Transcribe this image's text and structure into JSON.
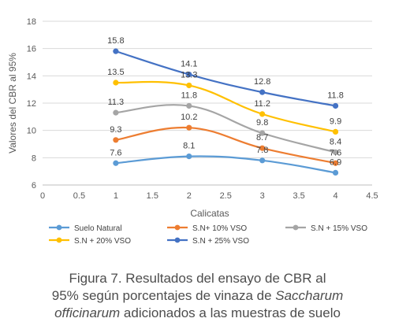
{
  "chart_data": {
    "type": "line",
    "xlabel": "Calicatas",
    "ylabel": "Valores del CBR al 95%",
    "xlim": [
      0,
      4.5
    ],
    "ylim": [
      6,
      18
    ],
    "xticks": [
      "0",
      "0.5",
      "1",
      "1.5",
      "2",
      "2.5",
      "3",
      "3.5",
      "4",
      "4.5"
    ],
    "yticks": [
      "6",
      "8",
      "10",
      "12",
      "14",
      "16",
      "18"
    ],
    "x": [
      1,
      2,
      3,
      4
    ],
    "grid": "horizontal",
    "legend_position": "bottom",
    "series": [
      {
        "name": "Suelo Natural",
        "color": "#5B9BD5",
        "values": [
          7.6,
          8.1,
          7.8,
          6.9
        ],
        "labels": [
          "7.6",
          "8.1",
          "7.8",
          "6.9"
        ]
      },
      {
        "name": "S.N+ 10% VSO",
        "color": "#ED7D31",
        "values": [
          9.3,
          10.2,
          8.7,
          7.6
        ],
        "labels": [
          "9.3",
          "10.2",
          "8.7",
          "7.6"
        ]
      },
      {
        "name": "S.N + 15% VSO",
        "color": "#A5A5A5",
        "values": [
          11.3,
          11.8,
          9.8,
          8.4
        ],
        "labels": [
          "11.3",
          "11.8",
          "9.8",
          "8.4"
        ]
      },
      {
        "name": "S.N + 20% VSO",
        "color": "#FFC000",
        "values": [
          13.5,
          13.3,
          11.2,
          9.9
        ],
        "labels": [
          "13.5",
          "13.3",
          "11.2",
          "9.9"
        ]
      },
      {
        "name": "S.N + 25% VSO",
        "color": "#4472C4",
        "values": [
          15.8,
          14.1,
          12.8,
          11.8
        ],
        "labels": [
          "15.8",
          "14.1",
          "12.8",
          "11.8"
        ]
      }
    ]
  },
  "caption": {
    "line1": "Figura 7. Resultados del ensayo de CBR al",
    "line2_prefix": "95% según porcentajes de vinaza de ",
    "line2_italic": "Saccharum",
    "line3_italic": "officinarum",
    "line3_suffix": " adicionados a las muestras de suelo"
  }
}
